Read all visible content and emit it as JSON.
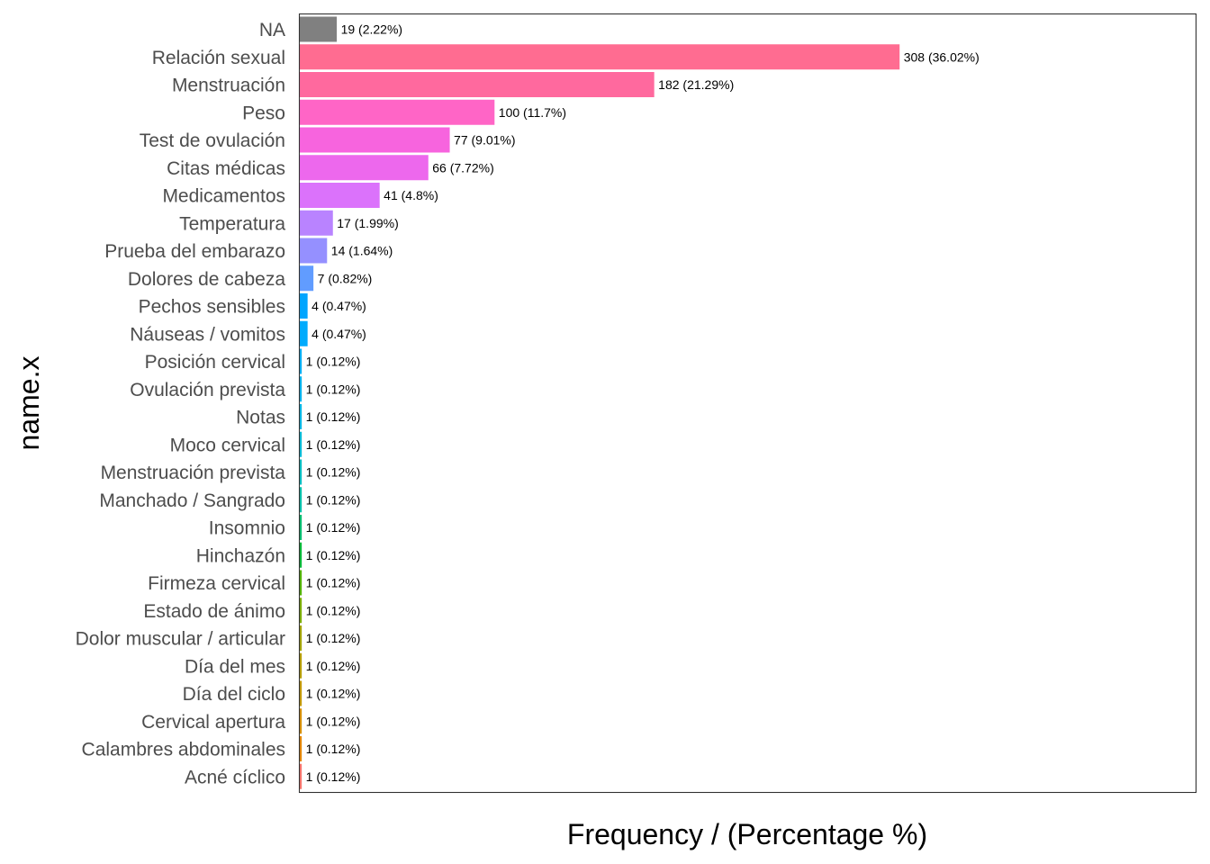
{
  "chart_data": {
    "type": "bar",
    "orientation": "horizontal",
    "title": "",
    "xlabel": "Frequency / (Percentage %)",
    "ylabel": "name.x",
    "xlim": [
      0,
      460
    ],
    "grid": false,
    "categories": [
      "NA",
      "Relación sexual",
      "Menstruación",
      "Peso",
      "Test de ovulación",
      "Citas médicas",
      "Medicamentos",
      "Temperatura",
      "Prueba del embarazo",
      "Dolores de cabeza",
      "Pechos sensibles",
      "Náuseas / vomitos",
      "Posición cervical",
      "Ovulación prevista",
      "Notas",
      "Moco cervical",
      "Menstruación prevista",
      "Manchado / Sangrado",
      "Insomnio",
      "Hinchazón",
      "Firmeza cervical",
      "Estado de ánimo",
      "Dolor muscular / articular",
      "Día del mes",
      "Día del ciclo",
      "Cervical apertura",
      "Calambres abdominales",
      "Acné cíclico"
    ],
    "values": [
      19,
      308,
      182,
      100,
      77,
      66,
      41,
      17,
      14,
      7,
      4,
      4,
      1,
      1,
      1,
      1,
      1,
      1,
      1,
      1,
      1,
      1,
      1,
      1,
      1,
      1,
      1,
      1
    ],
    "labels": [
      "19 (2.22%)",
      "308 (36.02%)",
      "182 (21.29%)",
      "100 (11.7%)",
      "77 (9.01%)",
      "66 (7.72%)",
      "41 (4.8%)",
      "17 (1.99%)",
      "14 (1.64%)",
      "7 (0.82%)",
      "4 (0.47%)",
      "4 (0.47%)",
      "1 (0.12%)",
      "1 (0.12%)",
      "1 (0.12%)",
      "1 (0.12%)",
      "1 (0.12%)",
      "1 (0.12%)",
      "1 (0.12%)",
      "1 (0.12%)",
      "1 (0.12%)",
      "1 (0.12%)",
      "1 (0.12%)",
      "1 (0.12%)",
      "1 (0.12%)",
      "1 (0.12%)",
      "1 (0.12%)",
      "1 (0.12%)"
    ],
    "colors": [
      "#808080",
      "#FF6C91",
      "#FF699E",
      "#FF65C6",
      "#F764DE",
      "#ED68ED",
      "#DB72FB",
      "#B983FF",
      "#9590FF",
      "#619CFF",
      "#00A5FF",
      "#00ABFD",
      "#00B0F6",
      "#00B4EF",
      "#00B8E7",
      "#00BCD8",
      "#00BFC4",
      "#00C1AB",
      "#00BE70",
      "#00BA38",
      "#53B400",
      "#7CAE00",
      "#A3A500",
      "#B79F00",
      "#C49A00",
      "#D89000",
      "#E58700",
      "#F8766D"
    ]
  }
}
